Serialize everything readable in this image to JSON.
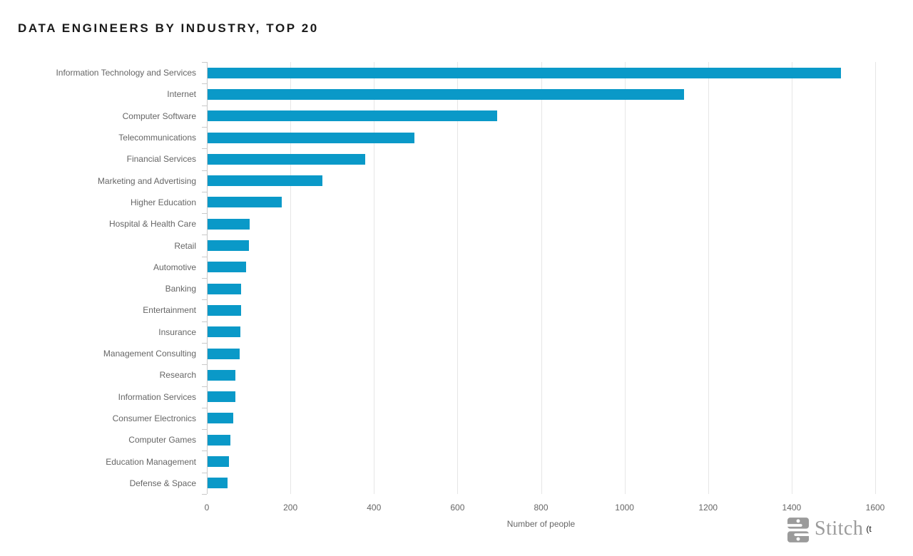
{
  "title": "DATA ENGINEERS BY INDUSTRY, TOP 20",
  "chart_data": {
    "type": "bar",
    "orientation": "horizontal",
    "title": "DATA ENGINEERS BY INDUSTRY, TOP 20",
    "categories": [
      "Information Technology and Services",
      "Internet",
      "Computer Software",
      "Telecommunications",
      "Financial Services",
      "Marketing and Advertising",
      "Higher Education",
      "Hospital & Health Care",
      "Retail",
      "Automotive",
      "Banking",
      "Entertainment",
      "Insurance",
      "Management Consulting",
      "Research",
      "Information Services",
      "Consumer Electronics",
      "Computer Games",
      "Education Management",
      "Defense & Space"
    ],
    "values": [
      1516,
      1141,
      693,
      495,
      377,
      275,
      178,
      100,
      99,
      92,
      80,
      80,
      78,
      77,
      67,
      66,
      62,
      55,
      51,
      48
    ],
    "xlabel": "Number of people",
    "ylabel": "",
    "xlim": [
      0,
      1600
    ],
    "xticks": [
      0,
      200,
      400,
      600,
      800,
      1000,
      1200,
      1400,
      1600
    ],
    "grid": true,
    "legend": "none",
    "bar_color": "#0a99c8"
  },
  "colors": {
    "accent": "#0a99c8",
    "label_gray": "#666666",
    "grid": "#e6e6e6",
    "axis": "#c9c9c9",
    "title": "#1a1a1a",
    "brand_gray": "#9b9b9b"
  },
  "branding": {
    "logo_icon": "stitch-logo-icon",
    "logo_text": "Stitch",
    "attribution_fragment": "(t"
  }
}
